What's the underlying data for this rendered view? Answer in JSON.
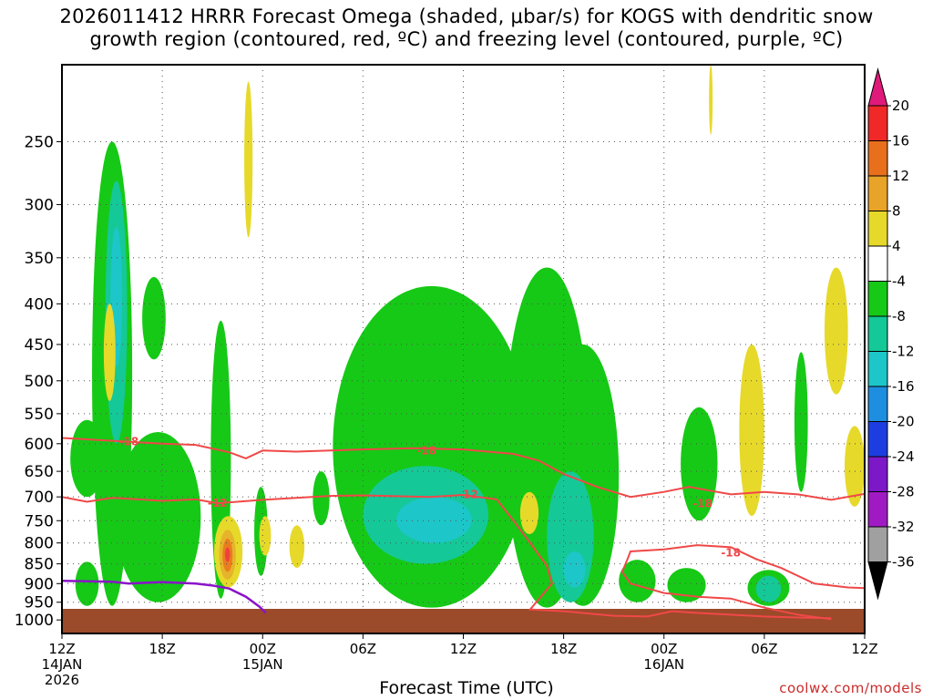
{
  "title_line1": "2026011412 HRRR Forecast Omega (shaded, μbar/s) for KOGS with dendritic snow",
  "title_line2": "growth region (contoured, red, ºC) and freezing level (contoured, purple, ºC)",
  "xlabel": "Forecast Time (UTC)",
  "watermark": "coolwx.com/models",
  "colors": {
    "green": "#16c916",
    "teal": "#15c898",
    "cyan": "#1dc6c8",
    "yellow": "#e6d92a",
    "gold": "#e6b42a",
    "orange": "#e97e1d",
    "red": "#f04040",
    "ground": "#9b4a2a",
    "dgz": "#f04848",
    "freezing": "#8a14c8"
  },
  "chart_data": {
    "type": "heatmap",
    "title": "2026011412 HRRR Forecast Omega (shaded, μbar/s) for KOGS with dendritic snow growth region (contoured, red, ºC) and freezing level (contoured, purple, ºC)",
    "xlabel": "Forecast Time (UTC)",
    "ylabel": "",
    "x_ticks": [
      {
        "hour": 0,
        "label": "12Z",
        "sub": "14JAN",
        "sub2": "2026"
      },
      {
        "hour": 6,
        "label": "18Z",
        "sub": "",
        "sub2": ""
      },
      {
        "hour": 12,
        "label": "00Z",
        "sub": "15JAN",
        "sub2": ""
      },
      {
        "hour": 18,
        "label": "06Z",
        "sub": "",
        "sub2": ""
      },
      {
        "hour": 24,
        "label": "12Z",
        "sub": "",
        "sub2": ""
      },
      {
        "hour": 30,
        "label": "18Z",
        "sub": "",
        "sub2": ""
      },
      {
        "hour": 36,
        "label": "00Z",
        "sub": "16JAN",
        "sub2": ""
      },
      {
        "hour": 42,
        "label": "06Z",
        "sub": "",
        "sub2": ""
      },
      {
        "hour": 48,
        "label": "12Z",
        "sub": "",
        "sub2": ""
      }
    ],
    "y_ticks": [
      250,
      300,
      350,
      400,
      450,
      500,
      550,
      600,
      650,
      700,
      750,
      800,
      850,
      900,
      950,
      1000
    ],
    "y_range_hpa": [
      200,
      1040
    ],
    "colorbar": {
      "labels": [
        "20",
        "16",
        "12",
        "8",
        "4",
        "-4",
        "-8",
        "-12",
        "-16",
        "-20",
        "-24",
        "-28",
        "-32",
        "-36"
      ],
      "colors": [
        "#f02828",
        "#e8701c",
        "#e8a428",
        "#e6d92a",
        "#ffffff",
        "#16c916",
        "#15c898",
        "#1dc6c8",
        "#1e8ee0",
        "#1c3ee0",
        "#7c18c8",
        "#a01ac4",
        "#a0a0a0"
      ],
      "top_color": "#e01a7a",
      "bottom_color": "#000000"
    },
    "contour_labels": [
      {
        "text": "-18",
        "hour": 4.0,
        "p": 596,
        "color": "dgz"
      },
      {
        "text": "-18",
        "hour": 21.8,
        "p": 612,
        "color": "dgz"
      },
      {
        "text": "-12",
        "hour": 9.3,
        "p": 713,
        "color": "dgz"
      },
      {
        "text": "-12",
        "hour": 24.3,
        "p": 695,
        "color": "dgz"
      },
      {
        "text": "-18",
        "hour": 38.3,
        "p": 714,
        "color": "dgz"
      },
      {
        "text": "-18",
        "hour": 40.0,
        "p": 823,
        "color": "dgz"
      }
    ],
    "dgz_lines": [
      {
        "name": "-18 (upper)",
        "points": [
          [
            0,
            590
          ],
          [
            3,
            595
          ],
          [
            6,
            600
          ],
          [
            8,
            602
          ],
          [
            10,
            615
          ],
          [
            11,
            626
          ],
          [
            12,
            612
          ],
          [
            14,
            614
          ],
          [
            18,
            610
          ],
          [
            21,
            608
          ],
          [
            24,
            610
          ],
          [
            27,
            618
          ],
          [
            28.5,
            630
          ],
          [
            30,
            655
          ],
          [
            32,
            680
          ],
          [
            34,
            700
          ],
          [
            36,
            690
          ],
          [
            37.5,
            680
          ],
          [
            40,
            695
          ],
          [
            42,
            690
          ],
          [
            44,
            695
          ],
          [
            46,
            706
          ],
          [
            48,
            694
          ]
        ]
      },
      {
        "name": "-12",
        "points": [
          [
            0,
            700
          ],
          [
            1.5,
            710
          ],
          [
            3,
            702
          ],
          [
            6,
            708
          ],
          [
            8,
            705
          ],
          [
            9.3,
            713
          ],
          [
            12,
            706
          ],
          [
            16,
            698
          ],
          [
            18,
            697
          ],
          [
            22,
            700
          ],
          [
            24,
            696
          ],
          [
            26,
            705
          ],
          [
            27,
            750
          ],
          [
            28,
            800
          ],
          [
            29,
            855
          ],
          [
            29.3,
            900
          ],
          [
            28,
            970
          ],
          [
            30,
            975
          ],
          [
            33,
            988
          ],
          [
            35,
            990
          ],
          [
            36.5,
            975
          ],
          [
            38,
            980
          ],
          [
            40,
            985
          ],
          [
            42,
            990
          ],
          [
            44,
            993
          ],
          [
            46,
            995
          ]
        ]
      },
      {
        "name": "-18 (lower)",
        "points": [
          [
            33.5,
            870
          ],
          [
            33.8,
            840
          ],
          [
            34,
            820
          ],
          [
            36,
            815
          ],
          [
            38,
            805
          ],
          [
            40,
            810
          ],
          [
            41.5,
            838
          ],
          [
            43,
            860
          ],
          [
            45,
            900
          ],
          [
            47,
            910
          ],
          [
            48,
            912
          ]
        ]
      },
      {
        "name": "-18 (lower inner)",
        "points": [
          [
            33.5,
            870
          ],
          [
            34,
            900
          ],
          [
            36,
            925
          ],
          [
            38,
            935
          ],
          [
            40,
            940
          ],
          [
            42,
            965
          ],
          [
            44,
            985
          ],
          [
            46,
            998
          ]
        ]
      }
    ],
    "freezing_line": {
      "name": "0 ºC",
      "points": [
        [
          0,
          893
        ],
        [
          3,
          895
        ],
        [
          4,
          900
        ],
        [
          5,
          898
        ],
        [
          6,
          896
        ],
        [
          8,
          900
        ],
        [
          9,
          905
        ],
        [
          10,
          913
        ],
        [
          11,
          935
        ],
        [
          11.8,
          962
        ],
        [
          12.2,
          980
        ]
      ]
    },
    "omega_regions": [
      {
        "level": -4,
        "color": "green",
        "hour": [
          1.8,
          4.2
        ],
        "p": [
          250,
          960
        ]
      },
      {
        "level": -4,
        "color": "green",
        "hour": [
          0.5,
          2.5
        ],
        "p": [
          560,
          700
        ]
      },
      {
        "level": -4,
        "color": "green",
        "hour": [
          0.8,
          2.2
        ],
        "p": [
          845,
          960
        ]
      },
      {
        "level": -4,
        "color": "green",
        "hour": [
          3.2,
          8.3
        ],
        "p": [
          580,
          950
        ]
      },
      {
        "level": -4,
        "color": "green",
        "hour": [
          4.8,
          6.2
        ],
        "p": [
          370,
          470
        ]
      },
      {
        "level": -4,
        "color": "green",
        "hour": [
          8.9,
          10.1
        ],
        "p": [
          420,
          940
        ]
      },
      {
        "level": -4,
        "color": "green",
        "hour": [
          11.5,
          12.3
        ],
        "p": [
          680,
          880
        ]
      },
      {
        "level": -4,
        "color": "green",
        "hour": [
          15,
          16
        ],
        "p": [
          650,
          760
        ]
      },
      {
        "level": -4,
        "color": "green",
        "hour": [
          16.2,
          28
        ],
        "p": [
          380,
          965
        ]
      },
      {
        "level": -4,
        "color": "green",
        "hour": [
          26.5,
          31.5
        ],
        "p": [
          360,
          965
        ]
      },
      {
        "level": -4,
        "color": "green",
        "hour": [
          29,
          33.3
        ],
        "p": [
          450,
          960
        ]
      },
      {
        "level": -4,
        "color": "green",
        "hour": [
          33.3,
          35.5
        ],
        "p": [
          840,
          950
        ]
      },
      {
        "level": -4,
        "color": "green",
        "hour": [
          36.2,
          38.5
        ],
        "p": [
          860,
          950
        ]
      },
      {
        "level": -4,
        "color": "green",
        "hour": [
          37,
          39.2
        ],
        "p": [
          540,
          750
        ]
      },
      {
        "level": -4,
        "color": "green",
        "hour": [
          41,
          43.5
        ],
        "p": [
          865,
          960
        ]
      },
      {
        "level": -4,
        "color": "green",
        "hour": [
          43.8,
          44.6
        ],
        "p": [
          460,
          690
        ]
      },
      {
        "level": -8,
        "color": "teal",
        "hour": [
          2.6,
          3.9
        ],
        "p": [
          280,
          600
        ]
      },
      {
        "level": -8,
        "color": "teal",
        "hour": [
          18,
          25.5
        ],
        "p": [
          640,
          850
        ]
      },
      {
        "level": -8,
        "color": "teal",
        "hour": [
          29,
          31.8
        ],
        "p": [
          650,
          950
        ]
      },
      {
        "level": -8,
        "color": "teal",
        "hour": [
          41.5,
          43
        ],
        "p": [
          880,
          950
        ]
      },
      {
        "level": -12,
        "color": "cyan",
        "hour": [
          2.9,
          3.6
        ],
        "p": [
          320,
          480
        ]
      },
      {
        "level": -12,
        "color": "cyan",
        "hour": [
          20,
          24.5
        ],
        "p": [
          700,
          800
        ]
      },
      {
        "level": -12,
        "color": "cyan",
        "hour": [
          30,
          31.3
        ],
        "p": [
          820,
          910
        ]
      },
      {
        "level": 4,
        "color": "yellow",
        "hour": [
          10.9,
          11.4
        ],
        "p": [
          210,
          330
        ]
      },
      {
        "level": 4,
        "color": "yellow",
        "hour": [
          2.5,
          3.2
        ],
        "p": [
          400,
          530
        ]
      },
      {
        "level": 4,
        "color": "yellow",
        "hour": [
          9.1,
          10.8
        ],
        "p": [
          740,
          910
        ]
      },
      {
        "level": 4,
        "color": "yellow",
        "hour": [
          11.8,
          12.5
        ],
        "p": [
          740,
          830
        ]
      },
      {
        "level": 4,
        "color": "yellow",
        "hour": [
          13.6,
          14.5
        ],
        "p": [
          760,
          860
        ]
      },
      {
        "level": 4,
        "color": "yellow",
        "hour": [
          27.4,
          28.5
        ],
        "p": [
          690,
          780
        ]
      },
      {
        "level": 4,
        "color": "yellow",
        "hour": [
          40.5,
          42
        ],
        "p": [
          450,
          740
        ]
      },
      {
        "level": 4,
        "color": "yellow",
        "hour": [
          45.6,
          47
        ],
        "p": [
          360,
          520
        ]
      },
      {
        "level": 4,
        "color": "yellow",
        "hour": [
          46.8,
          48
        ],
        "p": [
          570,
          720
        ]
      },
      {
        "level": 4,
        "color": "yellow",
        "hour": [
          38.7,
          38.9
        ],
        "p": [
          200,
          245
        ]
      },
      {
        "level": 8,
        "color": "gold",
        "hour": [
          9.4,
          10.4
        ],
        "p": [
          770,
          890
        ]
      },
      {
        "level": 12,
        "color": "orange",
        "hour": [
          9.6,
          10.2
        ],
        "p": [
          790,
          870
        ]
      },
      {
        "level": 16,
        "color": "red",
        "hour": [
          9.75,
          10.05
        ],
        "p": [
          810,
          845
        ]
      }
    ]
  }
}
